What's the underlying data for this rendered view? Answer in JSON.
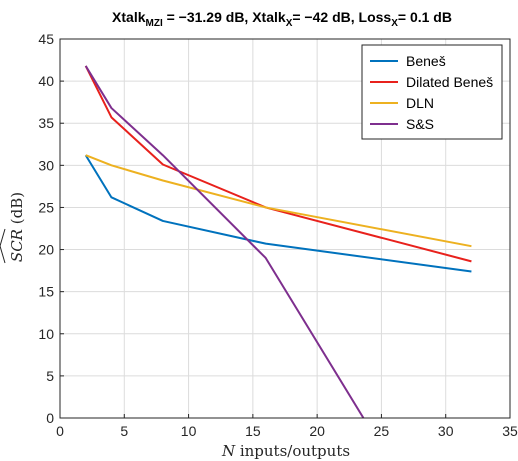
{
  "chart_data": {
    "type": "line",
    "title": {
      "parts": [
        {
          "text": "Xtalk",
          "sub": "MZI",
          "after": " = −31.29 dB, "
        },
        {
          "text": "Xtalk",
          "sub": "X",
          "after": "= −42 dB, "
        },
        {
          "text": "Loss",
          "sub": "X",
          "after": "= 0.1 dB"
        }
      ]
    },
    "xlabel": {
      "italic": "N",
      "rest": " inputs/outputs"
    },
    "ylabel": {
      "italic": "SCR",
      "rest": " (dB)"
    },
    "xlim": [
      0,
      35
    ],
    "ylim": [
      0,
      45
    ],
    "xticks": [
      "0",
      "5",
      "10",
      "15",
      "20",
      "25",
      "30",
      "35"
    ],
    "yticks": [
      "0",
      "5",
      "10",
      "15",
      "20",
      "25",
      "30",
      "35",
      "40",
      "45"
    ],
    "grid": true,
    "legend_position": "top-right",
    "series": [
      {
        "name": "Beneš",
        "color": "#0072BD",
        "x": [
          2,
          4,
          8,
          16,
          32
        ],
        "y": [
          31.2,
          26.2,
          23.4,
          20.7,
          17.4
        ]
      },
      {
        "name": "Dilated Beneš",
        "color": "#E8211C",
        "x": [
          2,
          4,
          8,
          16,
          32
        ],
        "y": [
          41.8,
          35.7,
          30.1,
          25.0,
          18.6
        ]
      },
      {
        "name": "DLN",
        "color": "#EDB120",
        "x": [
          2,
          4,
          8,
          16,
          32
        ],
        "y": [
          31.2,
          30.0,
          28.2,
          25.0,
          20.4
        ]
      },
      {
        "name": "S&S",
        "color": "#7E2F8E",
        "x": [
          2,
          4,
          8,
          16,
          23.6
        ],
        "y": [
          41.8,
          36.8,
          31.2,
          19.0,
          0
        ]
      }
    ]
  }
}
